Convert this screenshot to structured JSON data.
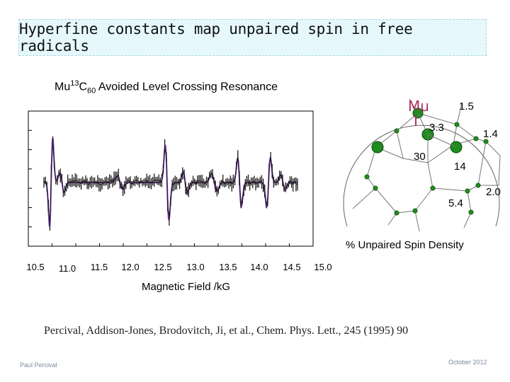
{
  "title": "Hyperfine constants map unpaired spin in free radicals",
  "subtitle": {
    "pre": "Mu",
    "sup": "13",
    "mid": "C",
    "sub": "60",
    "post": " Avoided Level Crossing Resonance"
  },
  "chart_data": {
    "type": "line",
    "xlabel": "Magnetic Field /kG",
    "x_ticks": [
      "10.5",
      "11.0",
      "11.5",
      "12.0",
      "12.5",
      "13.0",
      "13.5",
      "14.0",
      "14.5",
      "15.0"
    ],
    "xlim": [
      10.5,
      15.0
    ],
    "series": [
      {
        "role": "data",
        "color": "#1a1a1a",
        "style": "points-with-error-bars"
      },
      {
        "role": "fit",
        "color": "#8a3fc6",
        "style": "line"
      }
    ],
    "resonances_kG": [
      11.1,
      12.7,
      13.7,
      14.1
    ],
    "baseline": "flat with dispersive resonance features"
  },
  "c60_diagram": {
    "mu_label": "Mu",
    "spin_label": "% Unpaired Spin Density",
    "values": {
      "v1": "1.5",
      "v2": "3.3",
      "v3": "1.4",
      "v4": "30",
      "v5": "14",
      "v6": "5.4",
      "v7": "2.0"
    }
  },
  "citation": "Percival, Addison-Jones, Brodovitch, Ji, et al., Chem. Phys. Lett., 245 (1995) 90",
  "footer": {
    "left": "Paul Percival",
    "right": "October 2012"
  },
  "colors": {
    "fit": "#8a3fc6",
    "data": "#1a1a1a",
    "mu": "#b03060",
    "atom": "#1e8c1e",
    "title_bg": "#e6f8fb"
  }
}
